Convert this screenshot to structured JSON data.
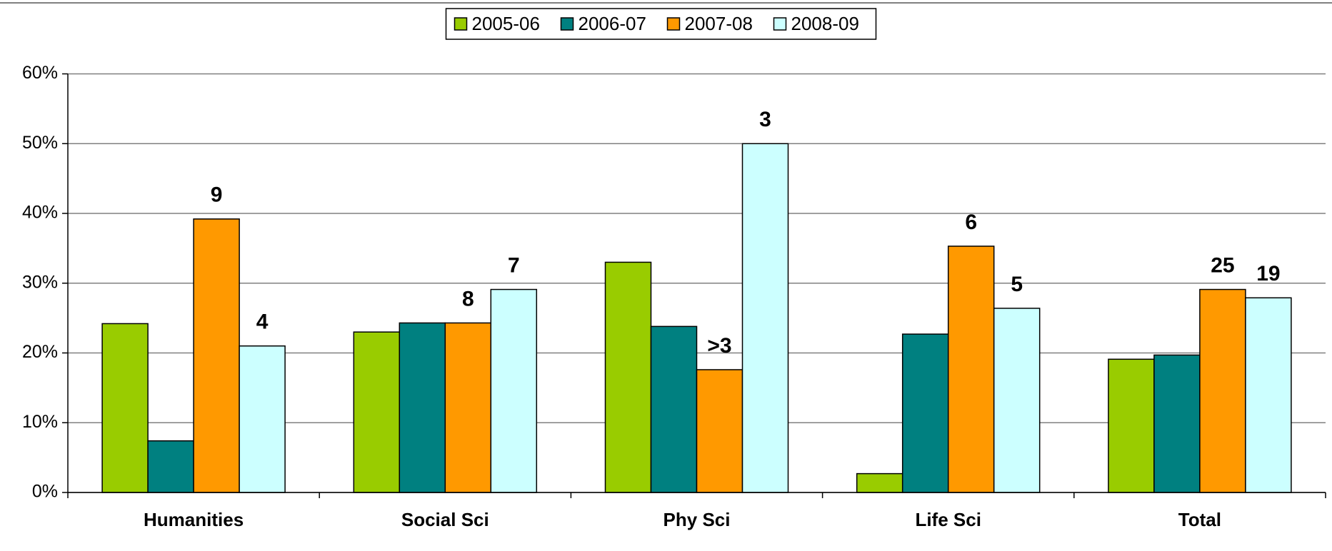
{
  "chart_data": {
    "type": "bar",
    "categories": [
      "Humanities",
      "Social Sci",
      "Phy Sci",
      "Life Sci",
      "Total"
    ],
    "series": [
      {
        "name": "2005-06",
        "color": "#99cc00",
        "values": [
          24.2,
          23.0,
          33.0,
          2.7,
          19.1
        ]
      },
      {
        "name": "2006-07",
        "color": "#008080",
        "values": [
          7.4,
          24.3,
          23.8,
          22.7,
          19.7
        ]
      },
      {
        "name": "2007-08",
        "color": "#ff9900",
        "values": [
          39.2,
          24.3,
          17.6,
          35.3,
          29.1
        ],
        "annotations": [
          "9",
          "8",
          ">3",
          "6",
          "25"
        ]
      },
      {
        "name": "2008-09",
        "color": "#ccffff",
        "values": [
          21.0,
          29.1,
          50.0,
          26.4,
          27.9
        ],
        "annotations": [
          "4",
          "7",
          "3",
          "5",
          "19"
        ]
      }
    ],
    "ylim": [
      0,
      60
    ],
    "yticks": [
      {
        "value": 0,
        "label": "0%"
      },
      {
        "value": 10,
        "label": "10%"
      },
      {
        "value": 20,
        "label": "20%"
      },
      {
        "value": 30,
        "label": "30%"
      },
      {
        "value": 40,
        "label": "40%"
      },
      {
        "value": 50,
        "label": "50%"
      },
      {
        "value": 60,
        "label": "60%"
      }
    ],
    "grid": true,
    "legend": "top"
  }
}
